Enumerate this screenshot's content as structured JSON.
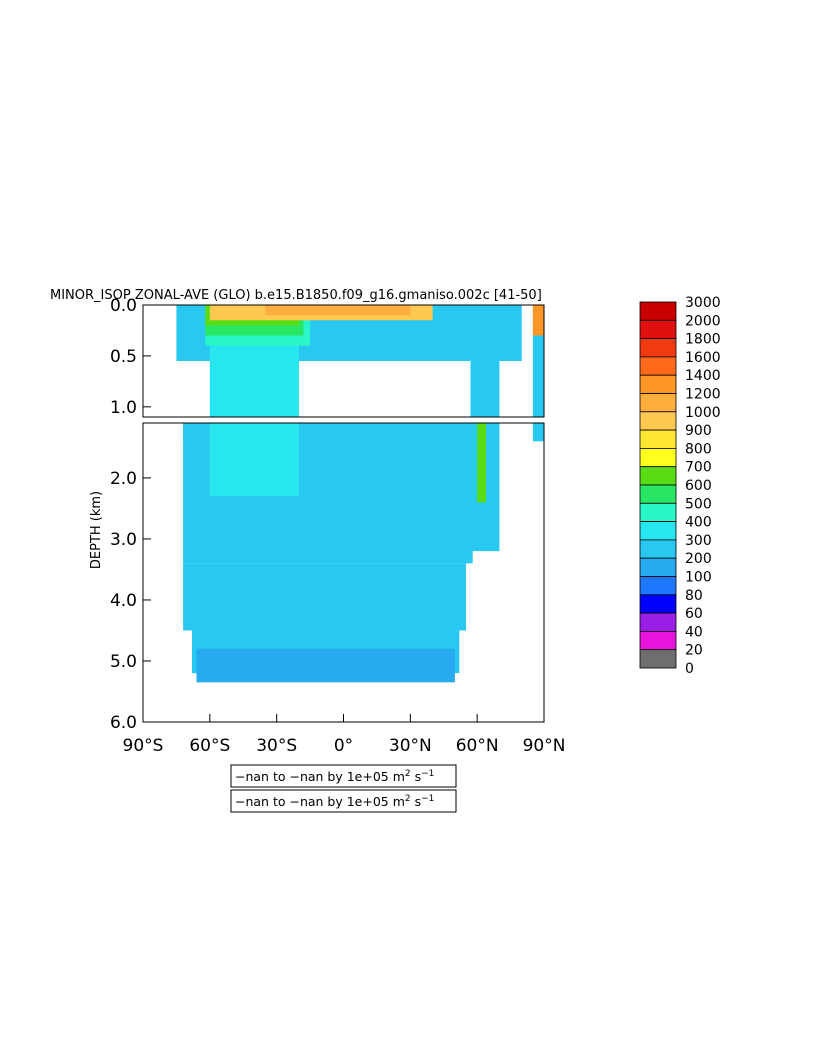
{
  "chart_data": {
    "type": "heatmap",
    "title": "MINOR_ISOP ZONAL-AVE (GLO) b.e15.B1850.f09_g16.gmaniso.002c [41-50]",
    "ylabel": "DEPTH (km)",
    "xlabel": "",
    "xlim": [
      -90,
      90
    ],
    "ylim_upper_panel": [
      0.0,
      1.1
    ],
    "ylim_lower_panel": [
      1.1,
      6.0
    ],
    "y_reversed": true,
    "x_ticks": [
      {
        "value": -90,
        "label": "90°S"
      },
      {
        "value": -60,
        "label": "60°S"
      },
      {
        "value": -30,
        "label": "30°S"
      },
      {
        "value": 0,
        "label": "0°"
      },
      {
        "value": 30,
        "label": "30°N"
      },
      {
        "value": 60,
        "label": "60°N"
      },
      {
        "value": 90,
        "label": "90°N"
      }
    ],
    "y_ticks_upper": [
      {
        "value": 0.0,
        "label": "0.0"
      },
      {
        "value": 0.5,
        "label": "0.5"
      },
      {
        "value": 1.0,
        "label": "1.0"
      }
    ],
    "y_ticks_lower": [
      {
        "value": 2.0,
        "label": "2.0"
      },
      {
        "value": 3.0,
        "label": "3.0"
      },
      {
        "value": 4.0,
        "label": "4.0"
      },
      {
        "value": 5.0,
        "label": "5.0"
      },
      {
        "value": 6.0,
        "label": "6.0"
      }
    ],
    "colorbar": {
      "levels": [
        "3000",
        "2000",
        "1800",
        "1600",
        "1400",
        "1200",
        "1000",
        "900",
        "800",
        "700",
        "600",
        "500",
        "400",
        "300",
        "200",
        "100",
        "80",
        "60",
        "40",
        "20",
        "0"
      ],
      "colors": [
        "#c80000",
        "#e01010",
        "#f23a10",
        "#ff6a1a",
        "#ff9628",
        "#ffad3c",
        "#ffc850",
        "#ffe632",
        "#ffff1e",
        "#5adc14",
        "#28e664",
        "#28f5c8",
        "#28e6f0",
        "#28c8f0",
        "#28aaf0",
        "#1e78ff",
        "#0000ff",
        "#9a1ee6",
        "#e614dc",
        "#cccccc",
        "#6e6e6e"
      ]
    },
    "regions": [
      {
        "lat": [
          -72,
          -70
        ],
        "depth": [
          1.1,
          1.4
        ],
        "value": 300
      },
      {
        "lat": [
          -75,
          80
        ],
        "depth": [
          0.0,
          0.55
        ],
        "value": 300
      },
      {
        "lat": [
          -72,
          58
        ],
        "depth": [
          1.1,
          3.4
        ],
        "value": 300
      },
      {
        "lat": [
          -72,
          55
        ],
        "depth": [
          3.4,
          4.5
        ],
        "value": 300
      },
      {
        "lat": [
          -68,
          52
        ],
        "depth": [
          4.5,
          5.2
        ],
        "value": 300
      },
      {
        "lat": [
          -66,
          50
        ],
        "depth": [
          4.8,
          5.35
        ],
        "value": 200
      },
      {
        "lat": [
          -60,
          -20
        ],
        "depth": [
          0.0,
          2.3
        ],
        "value": 400
      },
      {
        "lat": [
          -62,
          -15
        ],
        "depth": [
          0.0,
          0.4
        ],
        "value": 500
      },
      {
        "lat": [
          -62,
          -18
        ],
        "depth": [
          0.0,
          0.3
        ],
        "value": 600
      },
      {
        "lat": [
          -62,
          -20
        ],
        "depth": [
          0.0,
          0.2
        ],
        "value": 700
      },
      {
        "lat": [
          -60,
          40
        ],
        "depth": [
          0.0,
          0.15
        ],
        "value": 1000
      },
      {
        "lat": [
          -35,
          30
        ],
        "depth": [
          0.0,
          0.1
        ],
        "value": 1200
      },
      {
        "lat": [
          57,
          70
        ],
        "depth": [
          0.0,
          3.2
        ],
        "value": 300
      },
      {
        "lat": [
          60,
          64
        ],
        "depth": [
          1.1,
          2.4
        ],
        "value": 700
      },
      {
        "lat": [
          85,
          90
        ],
        "depth": [
          0.0,
          1.4
        ],
        "value": 300
      },
      {
        "lat": [
          85,
          90
        ],
        "depth": [
          0.0,
          0.3
        ],
        "value": 1400
      }
    ]
  },
  "legend_boxes": [
    {
      "text": "−nan to −nan by 1e+05 m",
      "unit_sup1": "2",
      "unit_mid": " s",
      "unit_sup2": "−1"
    },
    {
      "text": "−nan to −nan by 1e+05 m",
      "unit_sup1": "2",
      "unit_mid": " s",
      "unit_sup2": "−1"
    }
  ]
}
